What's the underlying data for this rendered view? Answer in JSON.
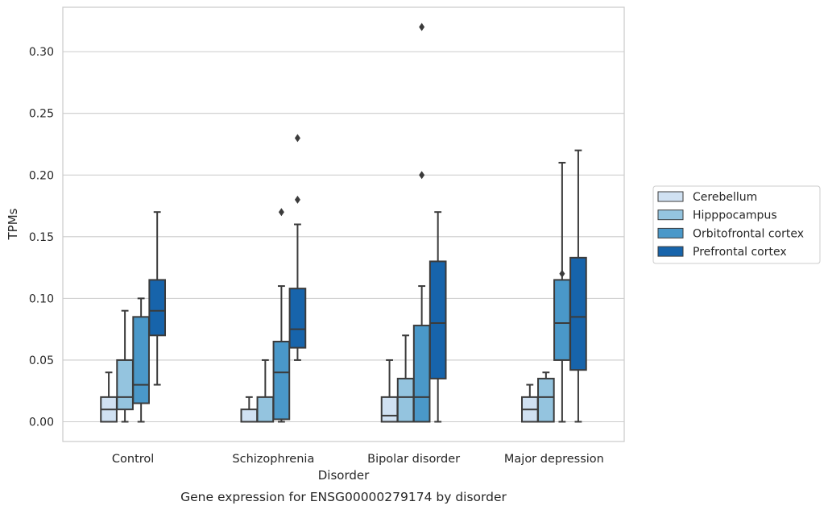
{
  "chart_data": {
    "type": "box",
    "categories": [
      "Control",
      "Schizophrenia",
      "Bipolar disorder",
      "Major depression"
    ],
    "xlabel": "Disorder",
    "ylabel": "TPMs",
    "caption": "Gene expression for ENSG00000279174 by disorder",
    "ylim": [
      -0.016,
      0.336
    ],
    "yticks": [
      0.0,
      0.05,
      0.1,
      0.15,
      0.2,
      0.25,
      0.3
    ],
    "ytick_labels": [
      "0.00",
      "0.05",
      "0.10",
      "0.15",
      "0.20",
      "0.25",
      "0.30"
    ],
    "grid": "horizontal",
    "legend_position": "right",
    "series": [
      {
        "name": "Cerebellum",
        "color": "#d0e1f2",
        "boxes": [
          {
            "whisker_low": 0.0,
            "q1": 0.0,
            "median": 0.01,
            "q3": 0.02,
            "whisker_high": 0.04,
            "outliers": []
          },
          {
            "whisker_low": 0.0,
            "q1": 0.0,
            "median": 0.0,
            "q3": 0.01,
            "whisker_high": 0.02,
            "outliers": []
          },
          {
            "whisker_low": 0.0,
            "q1": 0.0,
            "median": 0.005,
            "q3": 0.02,
            "whisker_high": 0.05,
            "outliers": []
          },
          {
            "whisker_low": 0.0,
            "q1": 0.0,
            "median": 0.01,
            "q3": 0.02,
            "whisker_high": 0.03,
            "outliers": []
          }
        ]
      },
      {
        "name": "Hipppocampus",
        "color": "#94c4df",
        "boxes": [
          {
            "whisker_low": 0.0,
            "q1": 0.01,
            "median": 0.02,
            "q3": 0.05,
            "whisker_high": 0.09,
            "outliers": []
          },
          {
            "whisker_low": 0.0,
            "q1": 0.0,
            "median": 0.0,
            "q3": 0.02,
            "whisker_high": 0.05,
            "outliers": []
          },
          {
            "whisker_low": 0.0,
            "q1": 0.0,
            "median": 0.02,
            "q3": 0.035,
            "whisker_high": 0.07,
            "outliers": []
          },
          {
            "whisker_low": 0.0,
            "q1": 0.0,
            "median": 0.02,
            "q3": 0.035,
            "whisker_high": 0.04,
            "outliers": []
          }
        ]
      },
      {
        "name": "Orbitofrontal cortex",
        "color": "#4a98c9",
        "boxes": [
          {
            "whisker_low": 0.0,
            "q1": 0.015,
            "median": 0.03,
            "q3": 0.085,
            "whisker_high": 0.1,
            "outliers": []
          },
          {
            "whisker_low": 0.0,
            "q1": 0.002,
            "median": 0.04,
            "q3": 0.065,
            "whisker_high": 0.11,
            "outliers": [
              0.17
            ]
          },
          {
            "whisker_low": 0.0,
            "q1": 0.0,
            "median": 0.02,
            "q3": 0.078,
            "whisker_high": 0.11,
            "outliers": [
              0.2,
              0.32
            ]
          },
          {
            "whisker_low": 0.0,
            "q1": 0.05,
            "median": 0.08,
            "q3": 0.115,
            "whisker_high": 0.21,
            "outliers": [
              0.12
            ]
          }
        ]
      },
      {
        "name": "Prefrontal cortex",
        "color": "#1764ab",
        "boxes": [
          {
            "whisker_low": 0.03,
            "q1": 0.07,
            "median": 0.09,
            "q3": 0.115,
            "whisker_high": 0.17,
            "outliers": []
          },
          {
            "whisker_low": 0.05,
            "q1": 0.06,
            "median": 0.075,
            "q3": 0.108,
            "whisker_high": 0.16,
            "outliers": [
              0.18,
              0.23
            ]
          },
          {
            "whisker_low": 0.0,
            "q1": 0.035,
            "median": 0.08,
            "q3": 0.13,
            "whisker_high": 0.17,
            "outliers": []
          },
          {
            "whisker_low": 0.0,
            "q1": 0.042,
            "median": 0.085,
            "q3": 0.133,
            "whisker_high": 0.22,
            "outliers": []
          }
        ]
      }
    ]
  }
}
